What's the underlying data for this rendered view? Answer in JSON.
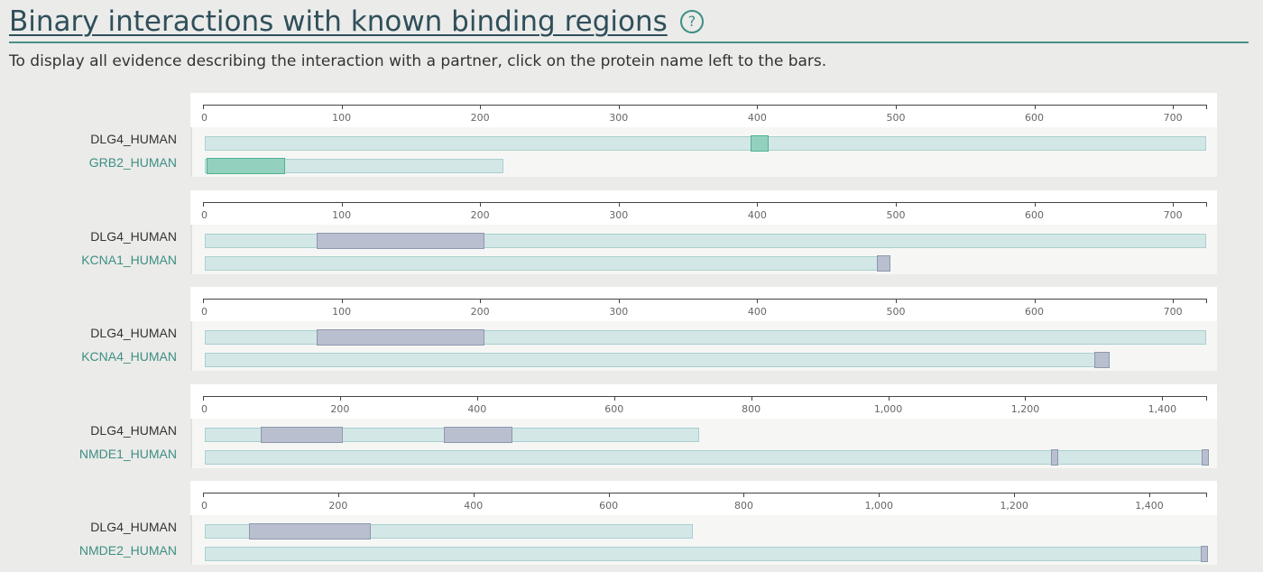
{
  "header": {
    "title": "Binary interactions with known binding regions",
    "help_icon": "question-circle-icon",
    "subtitle": "To display all evidence describing the interaction with a partner, click on the protein name left to the bars."
  },
  "colors": {
    "accent": "#3d8f84",
    "track_fill": "#d3e7e7",
    "track_border": "#a9cfcf",
    "region_green_fill": "#93d1be",
    "region_green_border": "#4fb090",
    "region_gray_fill": "#b9bfcf",
    "region_gray_border": "#8e97ad"
  },
  "interactions": [
    {
      "primary": {
        "name": "DLG4_HUMAN",
        "length": 724,
        "regions": [
          [
            394,
            407
          ]
        ]
      },
      "partner": {
        "name": "GRB2_HUMAN",
        "length": 217,
        "regions": [
          [
            1,
            58
          ]
        ]
      },
      "axis": {
        "max": 724,
        "ticks": [
          0,
          100,
          200,
          300,
          400,
          500,
          600,
          700
        ],
        "labels": [
          "0",
          "100",
          "200",
          "300",
          "400",
          "500",
          "600",
          "700"
        ]
      },
      "region_style": "green"
    },
    {
      "primary": {
        "name": "DLG4_HUMAN",
        "length": 724,
        "regions": [
          [
            81,
            202
          ]
        ]
      },
      "partner": {
        "name": "KCNA1_HUMAN",
        "length": 495,
        "regions": [
          [
            485,
            495
          ]
        ]
      },
      "axis": {
        "max": 724,
        "ticks": [
          0,
          100,
          200,
          300,
          400,
          500,
          600,
          700
        ],
        "labels": [
          "0",
          "100",
          "200",
          "300",
          "400",
          "500",
          "600",
          "700"
        ]
      },
      "region_style": "gray"
    },
    {
      "primary": {
        "name": "DLG4_HUMAN",
        "length": 724,
        "regions": [
          [
            81,
            202
          ]
        ]
      },
      "partner": {
        "name": "KCNA4_HUMAN",
        "length": 653,
        "regions": [
          [
            642,
            653
          ]
        ]
      },
      "axis": {
        "max": 724,
        "ticks": [
          0,
          100,
          200,
          300,
          400,
          500,
          600,
          700
        ],
        "labels": [
          "0",
          "100",
          "200",
          "300",
          "400",
          "500",
          "600",
          "700"
        ]
      },
      "region_style": "gray"
    },
    {
      "primary": {
        "name": "DLG4_HUMAN",
        "length": 724,
        "regions": [
          [
            81,
            202
          ],
          [
            349,
            449
          ]
        ]
      },
      "partner": {
        "name": "NMDE1_HUMAN",
        "length": 1464,
        "regions": [
          [
            1235,
            1245
          ],
          [
            1455,
            1464
          ]
        ]
      },
      "axis": {
        "max": 1464,
        "ticks": [
          0,
          200,
          400,
          600,
          800,
          1000,
          1200,
          1400
        ],
        "labels": [
          "0",
          "200",
          "400",
          "600",
          "800",
          "1,000",
          "1,200",
          "1,400"
        ]
      },
      "region_style": "gray"
    },
    {
      "primary": {
        "name": "DLG4_HUMAN",
        "length": 724,
        "regions": [
          [
            65,
            246
          ]
        ]
      },
      "partner": {
        "name": "NMDE2_HUMAN",
        "length": 1484,
        "regions": [
          [
            1473,
            1484
          ]
        ]
      },
      "axis": {
        "max": 1484,
        "ticks": [
          0,
          200,
          400,
          600,
          800,
          1000,
          1200,
          1400
        ],
        "labels": [
          "0",
          "200",
          "400",
          "600",
          "800",
          "1,000",
          "1,200",
          "1,400"
        ]
      },
      "region_style": "gray"
    }
  ]
}
